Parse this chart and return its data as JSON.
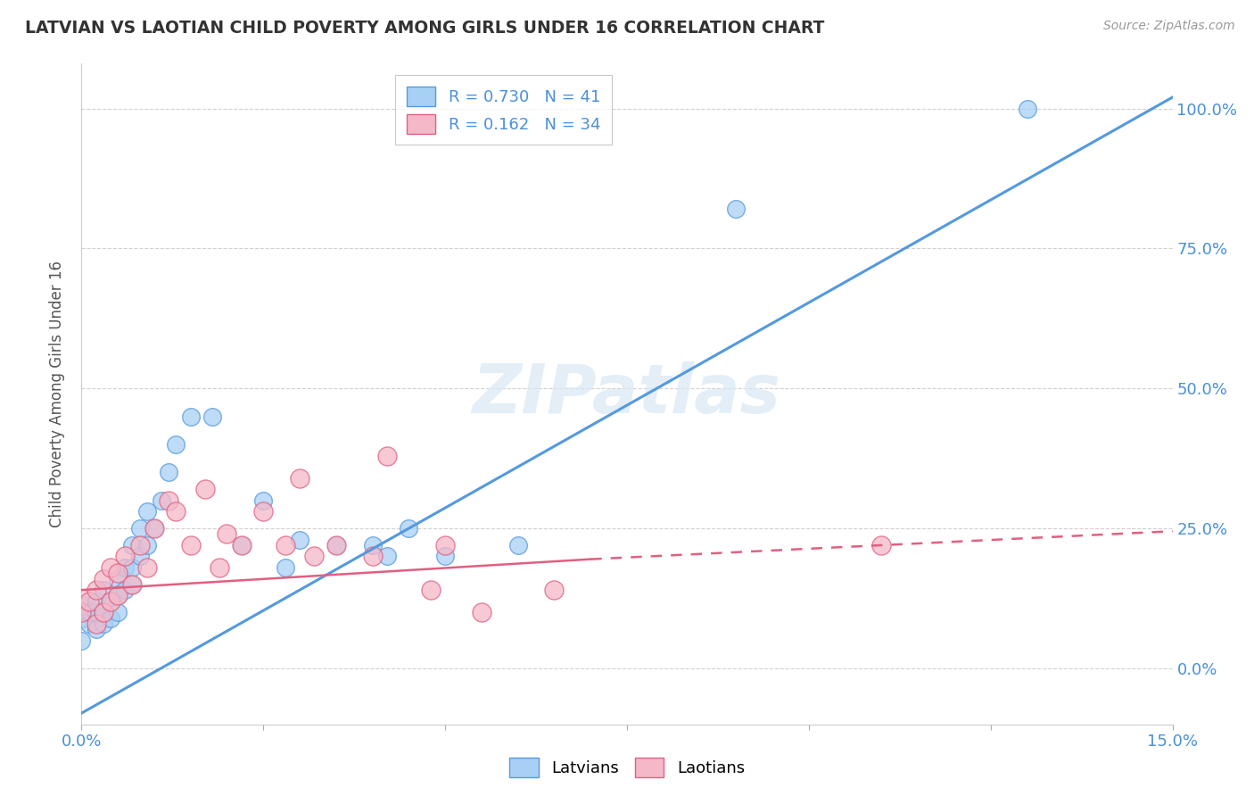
{
  "title": "LATVIAN VS LAOTIAN CHILD POVERTY AMONG GIRLS UNDER 16 CORRELATION CHART",
  "source": "Source: ZipAtlas.com",
  "ylabel": "Child Poverty Among Girls Under 16",
  "legend_latvians": "R = 0.730   N = 41",
  "legend_laotians": "R = 0.162   N = 34",
  "latvian_color": "#A8D0F5",
  "laotian_color": "#F5B8C8",
  "latvian_line_color": "#5599DD",
  "laotian_line_color": "#E06080",
  "watermark": "ZIPatlas",
  "latvians_x": [
    0.0,
    0.001,
    0.001,
    0.002,
    0.002,
    0.002,
    0.003,
    0.003,
    0.003,
    0.004,
    0.004,
    0.005,
    0.005,
    0.005,
    0.006,
    0.006,
    0.007,
    0.007,
    0.007,
    0.008,
    0.008,
    0.009,
    0.009,
    0.01,
    0.011,
    0.012,
    0.013,
    0.015,
    0.018,
    0.022,
    0.025,
    0.028,
    0.03,
    0.035,
    0.04,
    0.042,
    0.045,
    0.05,
    0.06,
    0.09,
    0.13
  ],
  "latvians_y": [
    0.05,
    0.08,
    0.1,
    0.07,
    0.1,
    0.12,
    0.08,
    0.1,
    0.14,
    0.09,
    0.12,
    0.13,
    0.1,
    0.16,
    0.14,
    0.18,
    0.15,
    0.18,
    0.22,
    0.2,
    0.25,
    0.22,
    0.28,
    0.25,
    0.3,
    0.35,
    0.4,
    0.45,
    0.45,
    0.22,
    0.3,
    0.18,
    0.23,
    0.22,
    0.22,
    0.2,
    0.25,
    0.2,
    0.22,
    0.82,
    1.0
  ],
  "laotians_x": [
    0.0,
    0.001,
    0.002,
    0.002,
    0.003,
    0.003,
    0.004,
    0.004,
    0.005,
    0.005,
    0.006,
    0.007,
    0.008,
    0.009,
    0.01,
    0.012,
    0.013,
    0.015,
    0.017,
    0.019,
    0.02,
    0.022,
    0.025,
    0.028,
    0.03,
    0.032,
    0.035,
    0.04,
    0.042,
    0.048,
    0.05,
    0.055,
    0.065,
    0.11
  ],
  "laotians_y": [
    0.1,
    0.12,
    0.08,
    0.14,
    0.1,
    0.16,
    0.12,
    0.18,
    0.13,
    0.17,
    0.2,
    0.15,
    0.22,
    0.18,
    0.25,
    0.3,
    0.28,
    0.22,
    0.32,
    0.18,
    0.24,
    0.22,
    0.28,
    0.22,
    0.34,
    0.2,
    0.22,
    0.2,
    0.38,
    0.14,
    0.22,
    0.1,
    0.14,
    0.22
  ],
  "xlim": [
    0.0,
    0.15
  ],
  "ylim": [
    -0.1,
    1.08
  ],
  "lat_line_x0": 0.0,
  "lat_line_y0": -0.08,
  "lat_line_x1": 0.15,
  "lat_line_y1": 1.02,
  "lao_line_x0": 0.0,
  "lao_line_y0": 0.14,
  "lao_line_x1": 0.15,
  "lao_line_y1": 0.245,
  "lao_line_dash_x0": 0.07,
  "lao_line_dash_y0": 0.195,
  "lao_line_dash_x1": 0.15,
  "lao_line_dash_y1": 0.245,
  "yticks": [
    0.0,
    0.25,
    0.5,
    0.75,
    1.0
  ],
  "yticklabels_right": [
    "0.0%",
    "25.0%",
    "50.0%",
    "75.0%",
    "100.0%"
  ],
  "xtick_positions": [
    0.0,
    0.025,
    0.05,
    0.075,
    0.1,
    0.125,
    0.15
  ],
  "xtick_labels": [
    "0.0%",
    "",
    "",
    "",
    "",
    "",
    "15.0%"
  ]
}
